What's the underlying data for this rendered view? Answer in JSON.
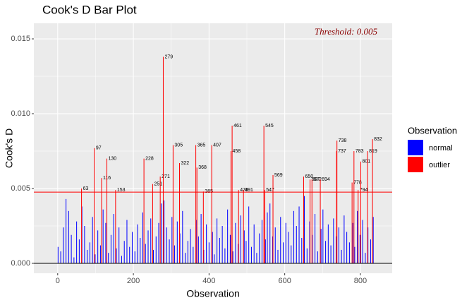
{
  "chart_data": {
    "type": "bar",
    "title": "Cook's D Bar Plot",
    "x_label": "Observation",
    "y_label": "Cook's D",
    "xlim": [
      -63,
      884
    ],
    "ylim": [
      -0.00066,
      0.01604
    ],
    "xticks": [
      0,
      200,
      400,
      600,
      800
    ],
    "yticks": [
      {
        "value": 0,
        "label": "0.000"
      },
      {
        "value": 0.005,
        "label": "0.005"
      },
      {
        "value": 0.01,
        "label": "0.010"
      },
      {
        "value": 0.015,
        "label": "0.015"
      }
    ],
    "grid": true,
    "legend_title": "Observation",
    "legend_position": "right",
    "threshold": {
      "value": 0.00476,
      "label": "Threshold: 0.005",
      "color": "#ff0000",
      "text_color": "#8b0000"
    },
    "series": [
      {
        "name": "normal",
        "color": "#0000ff",
        "x": [
          1,
          8,
          15,
          22,
          29,
          36,
          43,
          50,
          57,
          64,
          71,
          78,
          85,
          92,
          99,
          106,
          113,
          120,
          127,
          134,
          141,
          148,
          155,
          162,
          169,
          176,
          183,
          190,
          197,
          204,
          211,
          218,
          225,
          232,
          239,
          246,
          253,
          260,
          267,
          274,
          281,
          288,
          295,
          302,
          309,
          316,
          323,
          330,
          337,
          344,
          351,
          358,
          367,
          372,
          379,
          386,
          393,
          400,
          409,
          414,
          421,
          428,
          435,
          442,
          449,
          456,
          463,
          470,
          477,
          484,
          493,
          498,
          505,
          512,
          519,
          526,
          533,
          540,
          549,
          554,
          561,
          568,
          575,
          582,
          589,
          596,
          603,
          610,
          617,
          624,
          631,
          638,
          645,
          652,
          659,
          666,
          673,
          680,
          687,
          696,
          701,
          708,
          715,
          722,
          729,
          736,
          743,
          750,
          757,
          764,
          771,
          780,
          785,
          792,
          799,
          806,
          813,
          820,
          827,
          834
        ],
        "values": [
          0.0011,
          0.0008,
          0.0024,
          0.0043,
          0.0035,
          0.0019,
          0.0004,
          0.0028,
          0.0016,
          0.0038,
          0.0025,
          0.0009,
          0.0014,
          0.0031,
          0.0006,
          0.0022,
          0.0012,
          0.0036,
          0.0027,
          0.0007,
          0.0019,
          0.0033,
          0.001,
          0.0024,
          0.0005,
          0.0015,
          0.0029,
          0.0011,
          0.0021,
          0.0008,
          0.0026,
          0.0017,
          0.0034,
          0.0013,
          0.0022,
          0.003,
          0.0009,
          0.0018,
          0.0027,
          0.004,
          0.0042,
          0.0024,
          0.0016,
          0.0031,
          0.0012,
          0.0028,
          0.002,
          0.0035,
          0.0007,
          0.0015,
          0.0023,
          0.0011,
          0.0029,
          0.0018,
          0.0033,
          0.0009,
          0.0026,
          0.0014,
          0.0021,
          0.0006,
          0.003,
          0.0017,
          0.0025,
          0.001,
          0.0036,
          0.0019,
          0.0008,
          0.0027,
          0.0013,
          0.0032,
          0.0022,
          0.0015,
          0.0038,
          0.0011,
          0.0026,
          0.0007,
          0.002,
          0.0029,
          0.0016,
          0.0034,
          0.004,
          0.0018,
          0.0024,
          0.0009,
          0.0031,
          0.0014,
          0.0027,
          0.0021,
          0.0012,
          0.0035,
          0.0025,
          0.0038,
          0.0017,
          0.0045,
          0.001,
          0.0028,
          0.0019,
          0.0033,
          0.0008,
          0.0023,
          0.0036,
          0.0015,
          0.0026,
          0.0012,
          0.003,
          0.0018,
          0.0024,
          0.0009,
          0.0032,
          0.0021,
          0.0014,
          0.0027,
          0.0011,
          0.0035,
          0.0019,
          0.0029,
          0.0007,
          0.0024,
          0.0016,
          0.0031
        ]
      },
      {
        "name": "outlier",
        "color": "#ff0000",
        "x": [
          63,
          97,
          116,
          130,
          153,
          228,
          251,
          271,
          279,
          305,
          322,
          365,
          368,
          385,
          407,
          458,
          461,
          478,
          491,
          545,
          547,
          569,
          650,
          667,
          672,
          694,
          737,
          738,
          778,
          783,
          794,
          801,
          819,
          832
        ],
        "values": [
          0.005,
          0.0077,
          0.0057,
          0.007,
          0.0049,
          0.007,
          0.0053,
          0.0058,
          0.0138,
          0.0079,
          0.0067,
          0.0079,
          0.0064,
          0.0048,
          0.0079,
          0.0075,
          0.0092,
          0.0049,
          0.0049,
          0.0092,
          0.0049,
          0.0059,
          0.0058,
          0.0056,
          0.0056,
          0.0056,
          0.0075,
          0.0082,
          0.0054,
          0.0075,
          0.0049,
          0.0068,
          0.0075,
          0.0083
        ]
      }
    ]
  }
}
